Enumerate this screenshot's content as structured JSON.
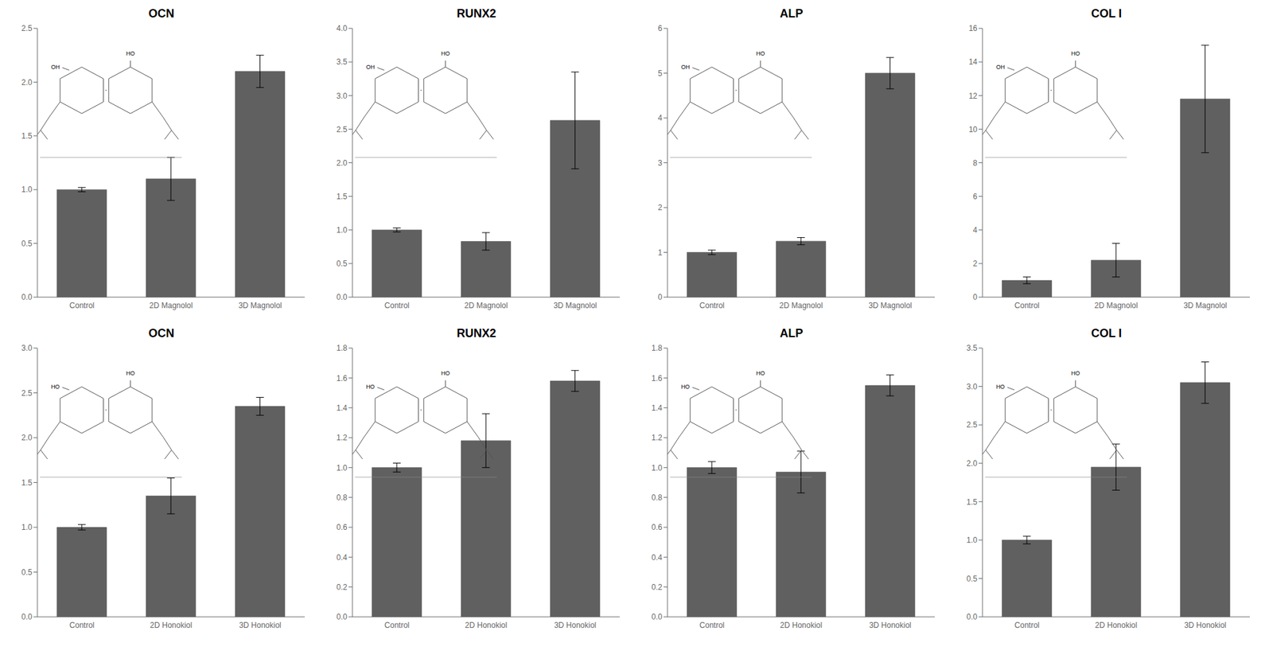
{
  "chart_data": [
    {
      "type": "bar",
      "title": "OCN",
      "categories": [
        "Control",
        "2D Magnolol",
        "3D Magnolol"
      ],
      "values": [
        1.0,
        1.1,
        2.1
      ],
      "errors": [
        0.02,
        0.2,
        0.15
      ],
      "color": "#606060",
      "ylim": [
        0,
        2.5
      ],
      "yticks": [
        {
          "value": 0,
          "label": "0.0"
        },
        0.5,
        {
          "value": 1,
          "label": "1.0"
        },
        1.5,
        {
          "value": 2,
          "label": "2.0"
        },
        2.5
      ],
      "annotations": [
        "OH",
        "HO"
      ]
    },
    {
      "type": "bar",
      "title": "RUNX2",
      "categories": [
        "Control",
        "2D Magnolol",
        "3D Magnolol"
      ],
      "values": [
        1.0,
        0.83,
        2.63
      ],
      "errors": [
        0.03,
        0.13,
        0.72
      ],
      "color": "#606060",
      "ylim": [
        0,
        4.0
      ],
      "yticks": [
        {
          "value": 0,
          "label": "0.0"
        },
        0.5,
        {
          "value": 1,
          "label": "1.0"
        },
        1.5,
        {
          "value": 2,
          "label": "2.0"
        },
        2.5,
        {
          "value": 3,
          "label": "3.0"
        },
        3.5,
        {
          "value": 4,
          "label": "4.0"
        }
      ],
      "annotations": [
        "OH",
        "HO"
      ]
    },
    {
      "type": "bar",
      "title": "ALP",
      "categories": [
        "Control",
        "2D Magnolol",
        "3D Magnolol"
      ],
      "values": [
        1.0,
        1.25,
        5.0
      ],
      "errors": [
        0.05,
        0.08,
        0.35
      ],
      "color": "#606060",
      "ylim": [
        0,
        6.0
      ],
      "yticks": [
        0,
        1,
        2,
        3,
        4,
        5,
        6
      ],
      "annotations": [
        "OH",
        "HO"
      ]
    },
    {
      "type": "bar",
      "title": "COL I",
      "categories": [
        "Control",
        "2D Magnolol",
        "3D Magnolol"
      ],
      "values": [
        1.0,
        2.2,
        11.8
      ],
      "errors": [
        0.2,
        1.0,
        3.2
      ],
      "color": "#606060",
      "ylim": [
        0,
        16.0
      ],
      "yticks": [
        0,
        2,
        4,
        6,
        8,
        10,
        12,
        14,
        16
      ],
      "annotations": [
        "OH",
        "HO"
      ]
    },
    {
      "type": "bar",
      "title": "OCN",
      "categories": [
        "Control",
        "2D Honokiol",
        "3D Honokiol"
      ],
      "values": [
        1.0,
        1.35,
        2.35
      ],
      "errors": [
        0.03,
        0.2,
        0.1
      ],
      "color": "#606060",
      "ylim": [
        0,
        3.0
      ],
      "yticks": [
        {
          "value": 0,
          "label": "0.0"
        },
        0.5,
        {
          "value": 1,
          "label": "1.0"
        },
        1.5,
        {
          "value": 2,
          "label": "2.0"
        },
        2.5,
        {
          "value": 3,
          "label": "3.0"
        }
      ],
      "annotations": [
        "HO",
        "HO"
      ]
    },
    {
      "type": "bar",
      "title": "RUNX2",
      "categories": [
        "Control",
        "2D Honokiol",
        "3D Honokiol"
      ],
      "values": [
        1.0,
        1.18,
        1.58
      ],
      "errors": [
        0.03,
        0.18,
        0.07
      ],
      "color": "#606060",
      "ylim": [
        0,
        1.8
      ],
      "yticks": [
        {
          "value": 0,
          "label": "0.0"
        },
        0.2,
        0.4,
        0.6,
        0.8,
        {
          "value": 1,
          "label": "1.0"
        },
        1.2,
        1.4,
        1.6,
        1.8
      ],
      "annotations": [
        "HO",
        "HO"
      ]
    },
    {
      "type": "bar",
      "title": "ALP",
      "categories": [
        "Control",
        "2D Honokiol",
        "3D Honokiol"
      ],
      "values": [
        1.0,
        0.97,
        1.55
      ],
      "errors": [
        0.04,
        0.14,
        0.07
      ],
      "color": "#606060",
      "ylim": [
        0,
        1.8
      ],
      "yticks": [
        {
          "value": 0,
          "label": "0.0"
        },
        0.2,
        0.4,
        0.6,
        0.8,
        {
          "value": 1,
          "label": "1.0"
        },
        1.2,
        1.4,
        1.6,
        1.8
      ],
      "annotations": [
        "HO",
        "HO"
      ]
    },
    {
      "type": "bar",
      "title": "COL I",
      "categories": [
        "Control",
        "2D Honokiol",
        "3D Honokiol"
      ],
      "values": [
        1.0,
        1.95,
        3.05
      ],
      "errors": [
        0.05,
        0.3,
        0.27
      ],
      "color": "#606060",
      "ylim": [
        0,
        3.5
      ],
      "yticks": [
        {
          "value": 0,
          "label": "0.0"
        },
        0.5,
        {
          "value": 1,
          "label": "1.0"
        },
        1.5,
        {
          "value": 2,
          "label": "2.0"
        },
        2.5,
        {
          "value": 3,
          "label": "3.0"
        },
        3.5
      ],
      "annotations": [
        "HO",
        "HO"
      ]
    }
  ]
}
